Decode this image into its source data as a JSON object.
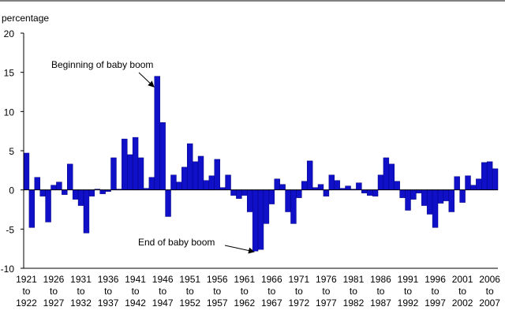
{
  "chart_data": {
    "type": "bar",
    "y_axis_label": "percentage",
    "annotations": [
      "Beginning of baby boom",
      "End of baby boom"
    ],
    "color": "#1010c8",
    "ylim": [
      -10,
      20
    ],
    "yticks": [
      -10,
      -5,
      0,
      5,
      10,
      15,
      20
    ],
    "grid": false,
    "categories": [
      "1921 to 1922",
      null,
      null,
      null,
      null,
      "1926 to 1927",
      null,
      null,
      null,
      null,
      "1931 to 1932",
      null,
      null,
      null,
      null,
      "1936 to 1937",
      null,
      null,
      null,
      null,
      "1941 to 1942",
      null,
      null,
      null,
      null,
      "1946 to 1947",
      null,
      null,
      null,
      null,
      "1951 to 1952",
      null,
      null,
      null,
      null,
      "1956 to 1957",
      null,
      null,
      null,
      null,
      "1961 to 1962",
      null,
      null,
      null,
      null,
      "1966 to 1967",
      null,
      null,
      null,
      null,
      "1971 to 1972",
      null,
      null,
      null,
      null,
      "1976 to 1977",
      null,
      null,
      null,
      null,
      "1981 to 1982",
      null,
      null,
      null,
      null,
      "1986 to 1987",
      null,
      null,
      null,
      null,
      "1991 to 1992",
      null,
      null,
      null,
      null,
      "1996 to 1997",
      null,
      null,
      null,
      null,
      "2001 to 2002",
      null,
      null,
      null,
      null,
      "2006 to 2007",
      null
    ],
    "values": [
      4.7,
      -4.8,
      1.6,
      -0.8,
      -4.1,
      0.6,
      1.0,
      -0.6,
      3.3,
      -1.2,
      -2.0,
      -5.5,
      -0.8,
      0.1,
      -0.5,
      -0.2,
      4.1,
      0.1,
      6.5,
      4.5,
      6.7,
      4.1,
      0.2,
      1.6,
      14.5,
      8.6,
      -3.4,
      1.9,
      1.0,
      2.9,
      5.9,
      3.6,
      4.3,
      1.2,
      1.8,
      3.9,
      0.3,
      1.9,
      -0.7,
      -1.1,
      -0.7,
      -2.8,
      -7.8,
      -7.6,
      -4.3,
      -1.8,
      1.4,
      0.7,
      -2.8,
      -4.3,
      -1.0,
      1.1,
      3.7,
      0.3,
      0.7,
      -0.8,
      1.9,
      1.2,
      0.2,
      0.5,
      0.1,
      0.9,
      -0.4,
      -0.7,
      -0.8,
      1.9,
      4.1,
      3.3,
      1.1,
      -1.0,
      -2.6,
      -1.2,
      -0.4,
      -2.0,
      -3.1,
      -4.8,
      -1.7,
      -1.4,
      -2.8,
      1.7,
      -1.6,
      1.8,
      0.6,
      1.4,
      3.5,
      3.6,
      2.7
    ]
  }
}
